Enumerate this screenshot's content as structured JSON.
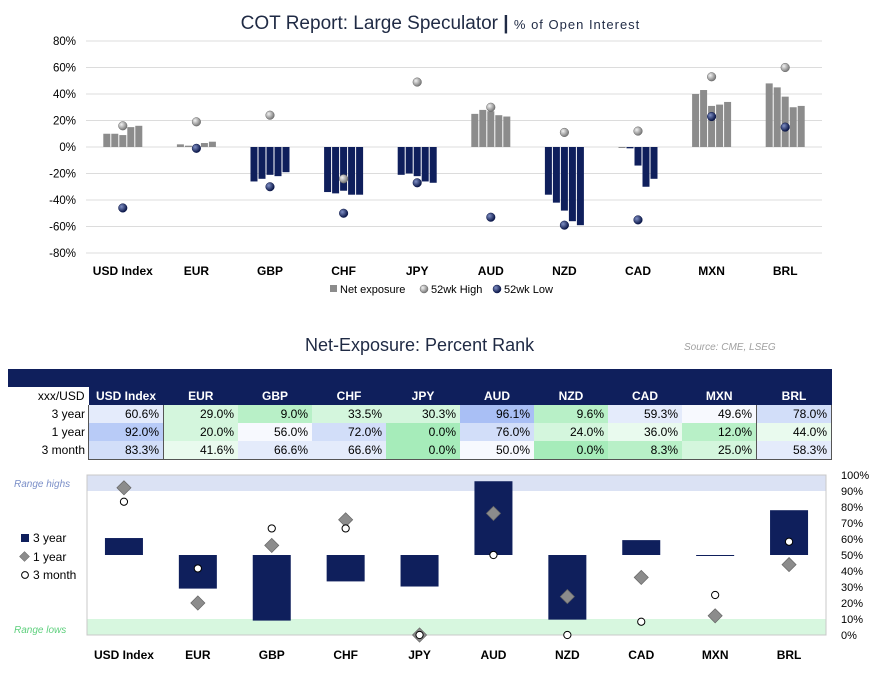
{
  "top_title": "COT Report: Large Speculator",
  "top_subtitle": "% of Open Interest",
  "bottom_title": "Net-Exposure: Percent Rank",
  "source": "Source: CME, LSEG",
  "colors": {
    "net": "#8c8c8c",
    "navy": "#0f1f5c",
    "high_green": "#1db954",
    "high_blue": "#5b7fe0"
  },
  "chart_data": [
    {
      "type": "bar",
      "title": "COT Report: Large Speculator",
      "subtitle": "% of Open Interest",
      "categories": [
        "USD Index",
        "EUR",
        "GBP",
        "CHF",
        "JPY",
        "AUD",
        "NZD",
        "CAD",
        "MXN",
        "BRL"
      ],
      "ylim": [
        -80,
        80
      ],
      "yticks": [
        "-80%",
        "-60%",
        "-40%",
        "-20%",
        "0%",
        "20%",
        "40%",
        "60%",
        "80%"
      ],
      "ytick_values": [
        -80,
        -60,
        -40,
        -20,
        0,
        20,
        40,
        60,
        80
      ],
      "legend": [
        "Net exposure",
        "52wk High",
        "52wk Low"
      ],
      "legend_position": "bottom",
      "series": [
        {
          "name": "Net exposure",
          "values": [
            [
              10,
              10,
              9,
              15,
              16
            ],
            [
              2,
              1,
              1,
              3,
              4
            ],
            [
              -26,
              -24,
              -21,
              -22,
              -19
            ],
            [
              -34,
              -35,
              -33,
              -36,
              -36
            ],
            [
              -21,
              -20,
              -22,
              -26,
              -27
            ],
            [
              25,
              28,
              27,
              24,
              23
            ],
            [
              -36,
              -42,
              -48,
              -56,
              -59
            ],
            [
              0,
              -1,
              -14,
              -30,
              -24
            ],
            [
              40,
              43,
              31,
              32,
              34
            ],
            [
              48,
              45,
              38,
              30,
              31
            ]
          ]
        },
        {
          "name": "52wk High",
          "values": [
            16,
            19,
            24,
            -24,
            49,
            30,
            11,
            12,
            53,
            60
          ]
        },
        {
          "name": "52wk Low",
          "values": [
            -46,
            -1,
            -30,
            -50,
            -27,
            -53,
            -59,
            -55,
            23,
            15
          ]
        }
      ]
    },
    {
      "type": "table",
      "title": "Net-Exposure: Percent Rank",
      "corner_label": "xxx/USD",
      "columns": [
        "USD Index",
        "EUR",
        "GBP",
        "CHF",
        "JPY",
        "AUD",
        "NZD",
        "CAD",
        "MXN",
        "BRL"
      ],
      "rows": [
        {
          "label": "3 year",
          "values": [
            "60.6%",
            "29.0%",
            "9.0%",
            "33.5%",
            "30.3%",
            "96.1%",
            "9.6%",
            "59.3%",
            "49.6%",
            "78.0%"
          ],
          "numbers": [
            60.6,
            29.0,
            9.0,
            33.5,
            30.3,
            96.1,
            9.6,
            59.3,
            49.6,
            78.0
          ]
        },
        {
          "label": "1 year",
          "values": [
            "92.0%",
            "20.0%",
            "56.0%",
            "72.0%",
            "0.0%",
            "76.0%",
            "24.0%",
            "36.0%",
            "12.0%",
            "44.0%"
          ],
          "numbers": [
            92.0,
            20.0,
            56.0,
            72.0,
            0.0,
            76.0,
            24.0,
            36.0,
            12.0,
            44.0
          ]
        },
        {
          "label": "3 month",
          "values": [
            "83.3%",
            "41.6%",
            "66.6%",
            "66.6%",
            "0.0%",
            "50.0%",
            "0.0%",
            "8.3%",
            "25.0%",
            "58.3%"
          ],
          "numbers": [
            83.3,
            41.6,
            66.6,
            66.6,
            0.0,
            50.0,
            0.0,
            8.3,
            25.0,
            58.3
          ]
        }
      ]
    },
    {
      "type": "bar",
      "categories": [
        "USD Index",
        "EUR",
        "GBP",
        "CHF",
        "JPY",
        "AUD",
        "NZD",
        "CAD",
        "MXN",
        "BRL"
      ],
      "ylim": [
        0,
        100
      ],
      "yticks": [
        "0%",
        "10%",
        "20%",
        "30%",
        "40%",
        "50%",
        "60%",
        "70%",
        "80%",
        "90%",
        "100%"
      ],
      "ytick_values": [
        0,
        10,
        20,
        30,
        40,
        50,
        60,
        70,
        80,
        90,
        100
      ],
      "baseline": 50,
      "band_high_label": "Range highs",
      "band_low_label": "Range lows",
      "legend": [
        "3 year",
        "1 year",
        "3 month"
      ],
      "legend_position": "left",
      "series": [
        {
          "name": "3 year",
          "values": [
            60.6,
            29.0,
            9.0,
            33.5,
            30.3,
            96.1,
            9.6,
            59.3,
            49.6,
            78.0
          ]
        },
        {
          "name": "1 year",
          "values": [
            92.0,
            20.0,
            56.0,
            72.0,
            0.0,
            76.0,
            24.0,
            36.0,
            12.0,
            44.0
          ]
        },
        {
          "name": "3 month",
          "values": [
            83.3,
            41.6,
            66.6,
            66.6,
            0.0,
            50.0,
            0.0,
            8.3,
            25.0,
            58.3
          ]
        }
      ]
    }
  ]
}
